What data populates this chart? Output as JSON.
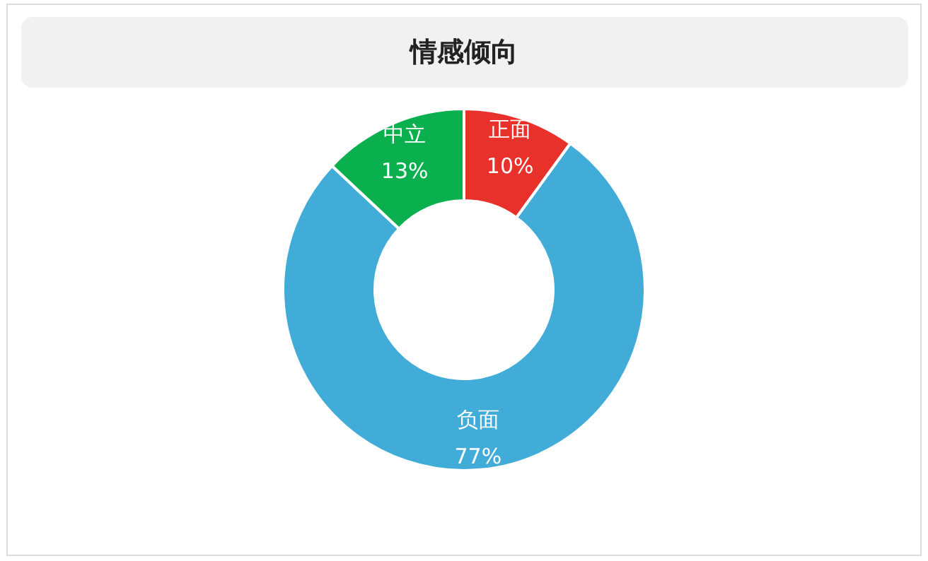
{
  "chart_data": {
    "type": "donut",
    "title": "情感倾向",
    "categories": [
      "正面",
      "负面",
      "中立"
    ],
    "values": [
      10,
      77,
      13
    ],
    "value_labels": [
      "10%",
      "77%",
      "13%"
    ],
    "colors": [
      "#e8312a",
      "#41acd8",
      "#0bb04e"
    ]
  }
}
